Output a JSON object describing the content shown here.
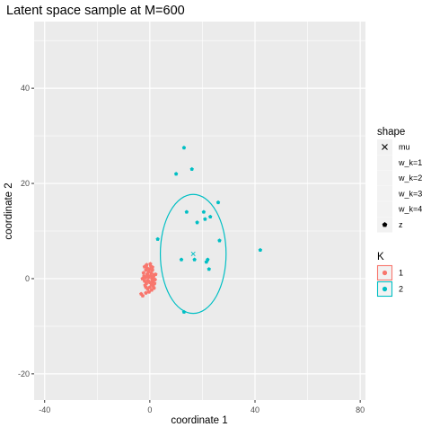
{
  "chart_data": {
    "type": "scatter",
    "title": "Latent space sample at M=600",
    "xlabel": "coordinate 1",
    "ylabel": "coordinate 2",
    "xlim": [
      -44,
      82
    ],
    "ylim": [
      -25.5,
      54
    ],
    "x_ticks": [
      -40,
      0,
      40,
      80
    ],
    "y_ticks": [
      -20,
      0,
      20,
      40
    ],
    "grid": true,
    "colors": {
      "1": "#F8766D",
      "2": "#00BFC4"
    },
    "shape_legend": {
      "title": "shape",
      "entries": [
        {
          "label": "mu",
          "symbol": "x"
        },
        {
          "label": "w_k=1",
          "symbol": "none"
        },
        {
          "label": "w_k=2",
          "symbol": "none"
        },
        {
          "label": "w_k=3",
          "symbol": "none"
        },
        {
          "label": "w_k=4",
          "symbol": "none"
        },
        {
          "label": "z",
          "symbol": "pentagon"
        }
      ]
    },
    "color_legend": {
      "title": "K",
      "entries": [
        {
          "label": "1",
          "key": "1"
        },
        {
          "label": "2",
          "key": "2"
        }
      ]
    },
    "series": [
      {
        "name": "1",
        "shape": "z",
        "points": [
          [
            -2.0,
            2.5
          ],
          [
            -1.5,
            1.8
          ],
          [
            -1.0,
            2.2
          ],
          [
            -0.5,
            1.5
          ],
          [
            0.0,
            2.0
          ],
          [
            0.5,
            1.2
          ],
          [
            1.0,
            1.8
          ],
          [
            1.5,
            0.8
          ],
          [
            -2.2,
            0.5
          ],
          [
            -1.6,
            0.2
          ],
          [
            -1.0,
            0.8
          ],
          [
            -0.4,
            0.3
          ],
          [
            0.2,
            0.6
          ],
          [
            0.8,
            0.0
          ],
          [
            1.4,
            0.4
          ],
          [
            2.0,
            -0.2
          ],
          [
            -2.0,
            -0.5
          ],
          [
            -1.3,
            -1.0
          ],
          [
            -0.7,
            -0.4
          ],
          [
            0.0,
            -0.8
          ],
          [
            0.6,
            -1.2
          ],
          [
            1.2,
            -0.6
          ],
          [
            1.8,
            -1.0
          ],
          [
            -1.5,
            -1.8
          ],
          [
            -0.8,
            -2.2
          ],
          [
            0.0,
            -1.8
          ],
          [
            0.7,
            -2.4
          ],
          [
            1.3,
            -1.6
          ],
          [
            -0.3,
            -2.8
          ],
          [
            0.4,
            2.6
          ],
          [
            -1.2,
            2.9
          ],
          [
            1.0,
            2.4
          ],
          [
            -2.4,
            1.2
          ],
          [
            2.2,
            0.9
          ],
          [
            -1.8,
            -1.4
          ],
          [
            1.6,
            -2.0
          ],
          [
            -3.3,
            -3.2
          ],
          [
            -2.7,
            -3.6
          ],
          [
            -1.5,
            -3.0
          ],
          [
            -2.8,
            0.0
          ],
          [
            0.2,
            3.1
          ],
          [
            -0.9,
            1.0
          ],
          [
            0.9,
            -0.3
          ]
        ]
      },
      {
        "name": "2",
        "shape": "z",
        "points": [
          [
            13.0,
            27.5
          ],
          [
            16.0,
            23.0
          ],
          [
            10.0,
            22.0
          ],
          [
            26.0,
            16.0
          ],
          [
            20.5,
            14.0
          ],
          [
            14.0,
            14.0
          ],
          [
            23.0,
            13.0
          ],
          [
            21.0,
            12.5
          ],
          [
            18.0,
            11.8
          ],
          [
            3.0,
            8.3
          ],
          [
            26.5,
            8.0
          ],
          [
            12.0,
            4.0
          ],
          [
            17.0,
            4.0
          ],
          [
            22.0,
            4.0
          ],
          [
            21.5,
            3.5
          ],
          [
            22.5,
            2.0
          ],
          [
            42.0,
            6.0
          ],
          [
            13.0,
            -7.0
          ]
        ]
      }
    ],
    "mu_marker": {
      "x": 16.5,
      "y": 5.2,
      "series": "2"
    },
    "ellipse": {
      "series": "2",
      "cx": 16.5,
      "cy": 5.2,
      "rx": 12.5,
      "ry": 12.5
    }
  }
}
